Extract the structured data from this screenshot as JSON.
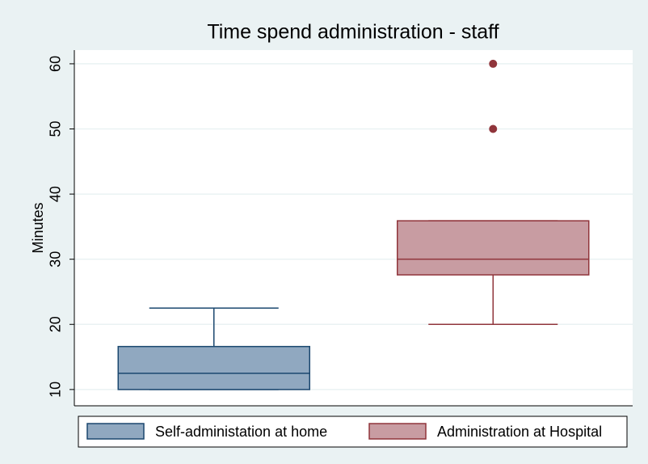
{
  "chart_data": {
    "type": "box",
    "title": "Time spend administration - staff",
    "y_label": "Minutes",
    "ylim": [
      7.5,
      62.1
    ],
    "yticks": [
      10,
      20,
      30,
      40,
      50,
      60
    ],
    "grid": true,
    "series": [
      {
        "name": "Self-administation at home",
        "color": "#90a8c0",
        "edgecolor": "#1a476f",
        "whislo": 10,
        "q1": 10,
        "median": 12.5,
        "q3": 16.6,
        "whishi": 22.5,
        "fliers": []
      },
      {
        "name": "Administration at Hospital",
        "color": "#c89ca2",
        "edgecolor": "#90353b",
        "whislo": 20,
        "q1": 27.6,
        "median": 30,
        "q3": 35.9,
        "whishi": 35.9,
        "fliers": [
          50,
          60
        ]
      }
    ]
  }
}
